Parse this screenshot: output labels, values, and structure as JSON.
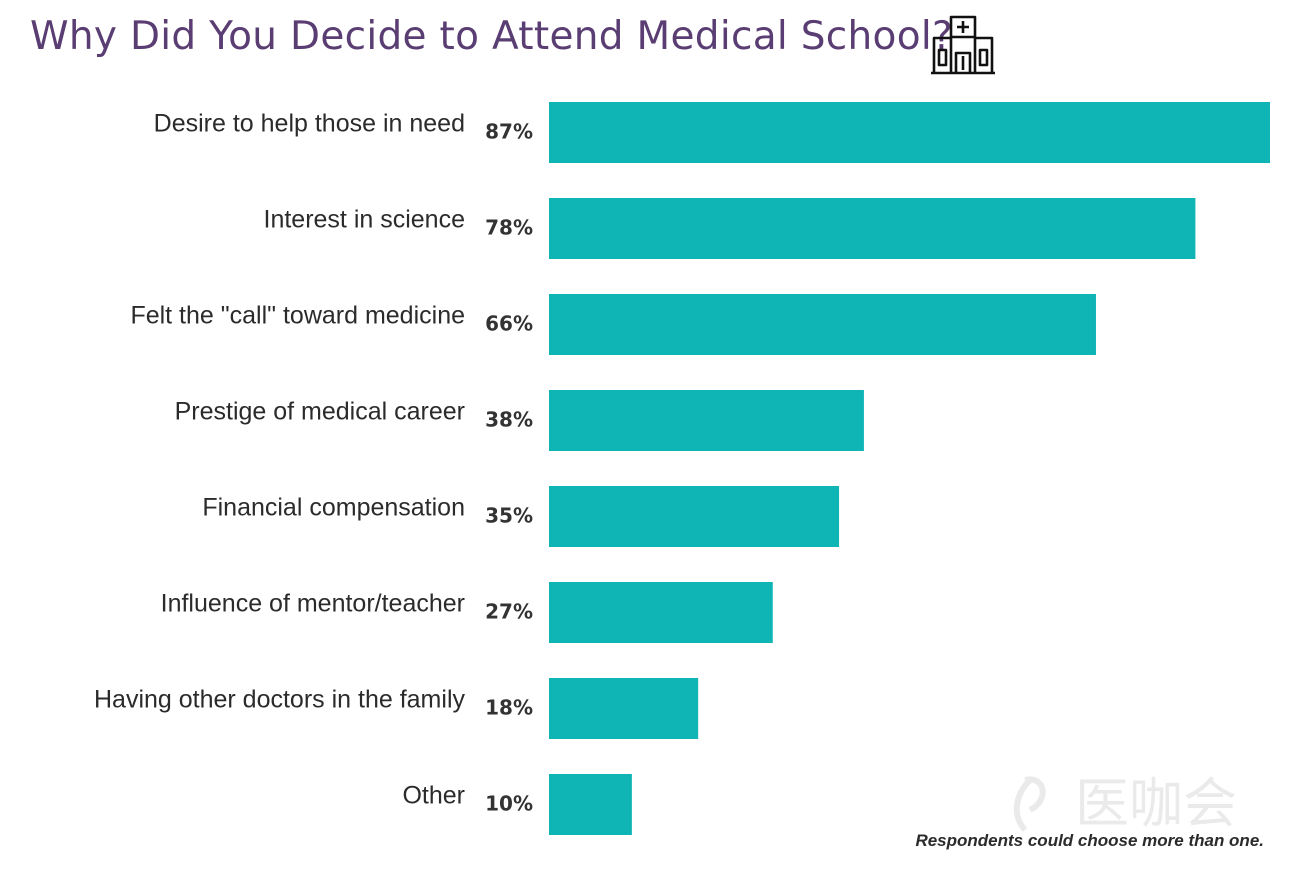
{
  "chart_data": {
    "type": "bar",
    "orientation": "horizontal",
    "title": "Why Did You Decide to Attend Medical School?",
    "categories": [
      "Desire to help those in need",
      "Interest in science",
      "Felt the \"call\" toward medicine",
      "Prestige of medical career",
      "Financial compensation",
      "Influence of mentor/teacher",
      "Having other doctors in the family",
      "Other"
    ],
    "values": [
      87,
      78,
      66,
      38,
      35,
      27,
      18,
      10
    ],
    "value_labels": [
      "87%",
      "78%",
      "66%",
      "38%",
      "35%",
      "27%",
      "18%",
      "10%"
    ],
    "xlim": [
      0,
      87
    ],
    "grid": false,
    "bar_color": "#0fb5b5",
    "note": "Respondents could choose more than one."
  },
  "title_color": "#5a3e73",
  "icon": "hospital-icon",
  "watermark_text": "医咖会"
}
